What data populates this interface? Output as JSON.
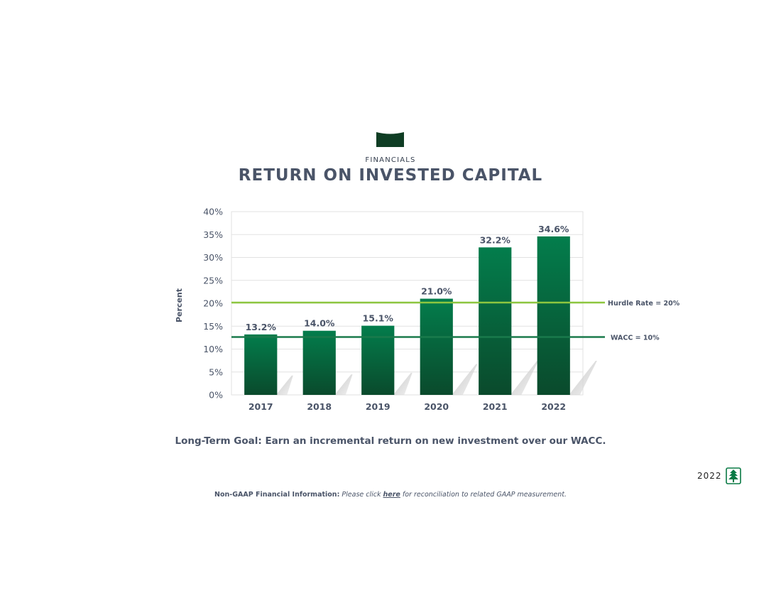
{
  "header": {
    "section_label": "FINANCIALS",
    "title": "RETURN ON INVESTED CAPITAL"
  },
  "chart_data": {
    "type": "bar",
    "title": "RETURN ON INVESTED CAPITAL",
    "ylabel": "Percent",
    "xlabel": "",
    "categories": [
      "2017",
      "2018",
      "2019",
      "2020",
      "2021",
      "2022"
    ],
    "values": [
      13.2,
      14.0,
      15.1,
      21.0,
      32.2,
      34.6
    ],
    "data_labels": [
      "13.2%",
      "14.0%",
      "15.1%",
      "21.0%",
      "32.2%",
      "34.6%"
    ],
    "ylim": [
      0,
      40
    ],
    "yticks": [
      0,
      5,
      10,
      15,
      20,
      25,
      30,
      35,
      40
    ],
    "ytick_labels": [
      "0%",
      "5%",
      "10%",
      "15%",
      "20%",
      "25%",
      "30%",
      "35%",
      "40%"
    ],
    "grid": true,
    "reference_lines": [
      {
        "label": "Hurdle Rate = 20%",
        "value": 20,
        "color": "#8dc63f"
      },
      {
        "label": "WACC = 10%",
        "value": 10,
        "color": "#1a7a4c"
      }
    ],
    "bar_colors": {
      "top": "#037d4c",
      "bottom": "#0a4a2c"
    }
  },
  "goal_text": "Long-Term Goal: Earn an incremental return on new investment over our WACC.",
  "footnote": {
    "strong": "Non-GAAP Financial Information:",
    "pre_link": "Please click",
    "link": "here",
    "post_link": "for reconciliation to related GAAP measurement."
  },
  "footer": {
    "year": "2022",
    "logo_icon": "evergreen-tree-icon"
  },
  "colors": {
    "text": "#4a5468",
    "brand_dark": "#0f3d24"
  }
}
